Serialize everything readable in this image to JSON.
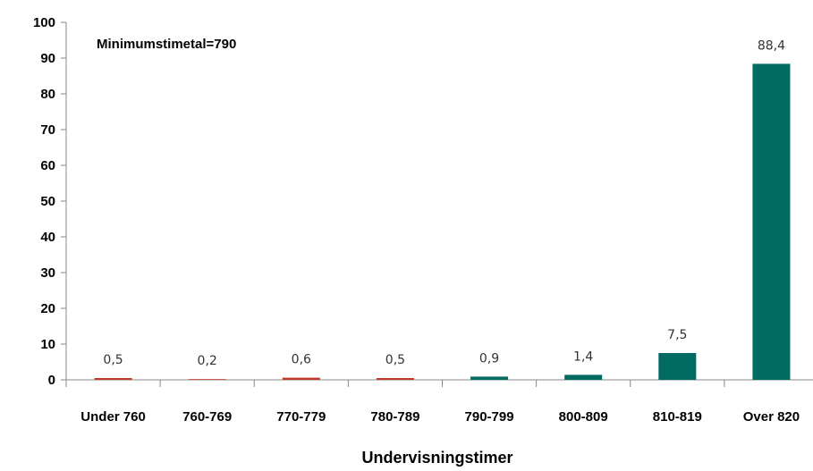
{
  "chart_data": {
    "type": "bar",
    "title": "",
    "xlabel": "Undervisningstimer",
    "ylabel": "",
    "ylim": [
      0,
      100
    ],
    "yticks": [
      0,
      10,
      20,
      30,
      40,
      50,
      60,
      70,
      80,
      90,
      100
    ],
    "categories": [
      "Under 760",
      "760-769",
      "770-779",
      "780-789",
      "790-799",
      "800-809",
      "810-819",
      "Over 820"
    ],
    "values": [
      0.5,
      0.2,
      0.6,
      0.5,
      0.9,
      1.4,
      7.5,
      88.4
    ],
    "value_labels": [
      "0,5",
      "0,2",
      "0,6",
      "0,5",
      "0,9",
      "1,4",
      "7,5",
      "88,4"
    ],
    "bar_colors": [
      "#c0392b",
      "#c0392b",
      "#c0392b",
      "#c0392b",
      "#006b63",
      "#006b63",
      "#006b63",
      "#006b63"
    ],
    "annotation": "Minimumstimetal=790",
    "grid": false,
    "legend": "none"
  }
}
